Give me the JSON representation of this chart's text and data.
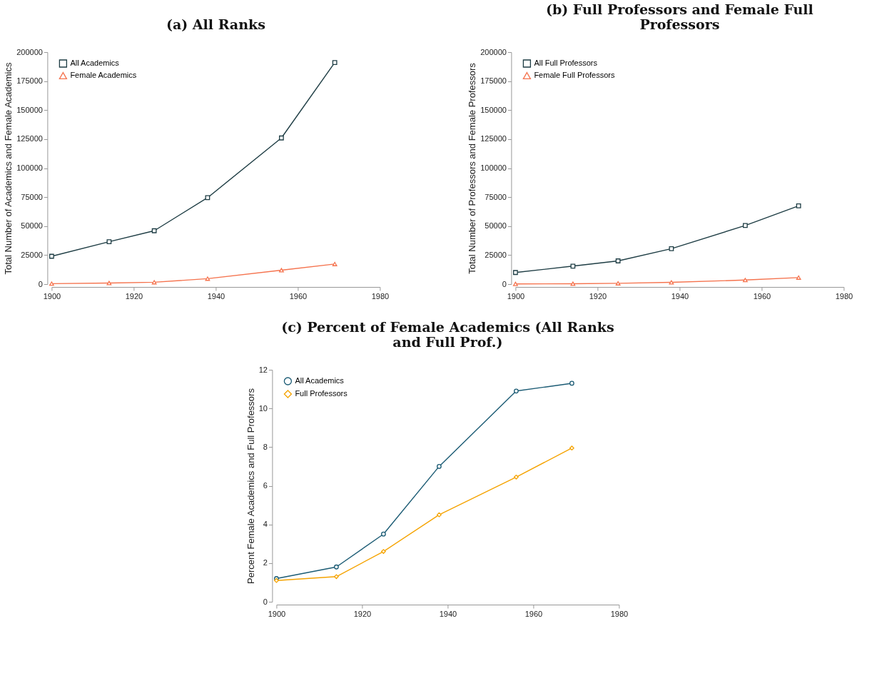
{
  "chart_data": [
    {
      "type": "line",
      "title": "(a) All Ranks",
      "ylabel": "Total Number of Academics and Female Academics",
      "x": [
        1900,
        1914,
        1925,
        1938,
        1956,
        1969
      ],
      "xlim": [
        1900,
        1980
      ],
      "xticks": [
        1900,
        1920,
        1940,
        1960,
        1980
      ],
      "ylim": [
        0,
        200000
      ],
      "yticks": [
        0,
        25000,
        50000,
        75000,
        100000,
        125000,
        150000,
        175000,
        200000
      ],
      "grid": false,
      "legend": "top left",
      "line_style": "solid",
      "series": [
        {
          "name": "All Academics",
          "color": "#1e3d44",
          "marker": "square",
          "values": [
            24000,
            36500,
            46000,
            74500,
            126000,
            191000
          ]
        },
        {
          "name": "Female Academics",
          "color": "#f5734e",
          "marker": "triangle",
          "values": [
            400,
            900,
            1600,
            4700,
            12000,
            17300
          ]
        }
      ]
    },
    {
      "type": "line",
      "title": "(b) Full Professors and Female Full Professors",
      "ylabel": "Total Number of Professors and Female Professors",
      "x": [
        1900,
        1914,
        1925,
        1938,
        1956,
        1969
      ],
      "xlim": [
        1900,
        1980
      ],
      "xticks": [
        1900,
        1920,
        1940,
        1960,
        1980
      ],
      "ylim": [
        0,
        200000
      ],
      "yticks": [
        0,
        25000,
        50000,
        75000,
        100000,
        125000,
        150000,
        175000,
        200000
      ],
      "grid": false,
      "legend": "top left",
      "line_style": "solid",
      "series": [
        {
          "name": "All Full Professors",
          "color": "#1e3d44",
          "marker": "square",
          "values": [
            10000,
            15500,
            20000,
            30500,
            50500,
            67500
          ]
        },
        {
          "name": "Female Full Professors",
          "color": "#f5734e",
          "marker": "triangle",
          "values": [
            200,
            300,
            700,
            1500,
            3500,
            5600
          ]
        }
      ]
    },
    {
      "type": "line",
      "title": "(c) Percent of Female Academics (All Ranks and Full Prof.)",
      "ylabel": "Percent Female Academics and Full Professors",
      "x": [
        1900,
        1914,
        1925,
        1938,
        1956,
        1969
      ],
      "xlim": [
        1900,
        1980
      ],
      "xticks": [
        1900,
        1920,
        1940,
        1960,
        1980
      ],
      "ylim": [
        0,
        12
      ],
      "yticks": [
        0,
        2,
        4,
        6,
        8,
        10,
        12
      ],
      "grid": false,
      "legend": "top left",
      "line_style": "solid",
      "series": [
        {
          "name": "All Academics",
          "color": "#1b5b74",
          "marker": "circle",
          "values": [
            1.2,
            1.8,
            3.5,
            7.0,
            10.9,
            11.3
          ]
        },
        {
          "name": "Full Professors",
          "color": "#f5a300",
          "marker": "diamond",
          "values": [
            1.1,
            1.3,
            2.6,
            4.5,
            6.45,
            7.95
          ]
        }
      ]
    }
  ]
}
